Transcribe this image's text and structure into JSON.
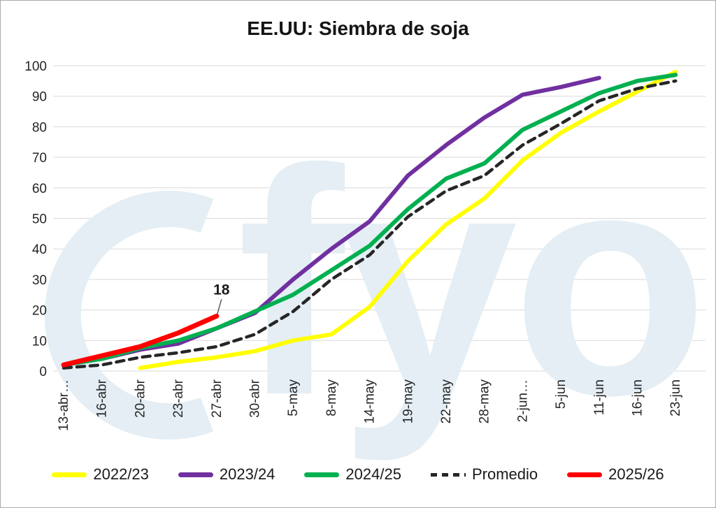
{
  "title": "EE.UU: Siembra de soja",
  "watermark_text": "fyo",
  "chart_data": {
    "type": "line",
    "title": "EE.UU: Siembra de soja",
    "categories": [
      "13-abr…",
      "16-abr",
      "20-abr",
      "23-abr",
      "27-abr",
      "30-abr",
      "5-may",
      "8-may",
      "14-may",
      "19-may",
      "22-may",
      "28-may",
      "2-jun…",
      "5-jun",
      "11-jun",
      "16-jun",
      "23-jun"
    ],
    "series": [
      {
        "name": "2022/23",
        "color": "#FFFF00",
        "dashed": false,
        "values": [
          null,
          null,
          1,
          3,
          4.5,
          6.5,
          10,
          12,
          21,
          36,
          48,
          56.5,
          69,
          78,
          85,
          91.5,
          98
        ]
      },
      {
        "name": "2023/24",
        "color": "#7030A0",
        "dashed": false,
        "values": [
          null,
          4,
          7,
          9,
          14,
          19,
          30,
          40,
          49,
          64,
          74,
          83,
          90.5,
          93,
          96,
          null,
          null
        ]
      },
      {
        "name": "2024/25",
        "color": "#00B050",
        "dashed": false,
        "values": [
          2,
          4,
          7.5,
          10,
          14,
          19.5,
          25,
          33,
          41,
          53,
          63,
          68,
          79,
          85,
          91,
          95,
          97
        ]
      },
      {
        "name": "Promedio",
        "color": "#262626",
        "dashed": true,
        "values": [
          1,
          2,
          4.5,
          6,
          8,
          12,
          19.5,
          30,
          38,
          50.5,
          59,
          64,
          74,
          81,
          88.5,
          92.5,
          95
        ]
      },
      {
        "name": "2025/26",
        "color": "#FF0000",
        "dashed": false,
        "values": [
          2,
          5,
          8,
          12.5,
          18,
          null,
          null,
          null,
          null,
          null,
          null,
          null,
          null,
          null,
          null,
          null,
          null
        ]
      }
    ],
    "ylabel": "",
    "xlabel": "",
    "ylim": [
      0,
      100
    ],
    "yticks": [
      0,
      10,
      20,
      30,
      40,
      50,
      60,
      70,
      80,
      90,
      100
    ],
    "grid": true,
    "legend_position": "bottom",
    "annotations": [
      {
        "text": "18",
        "series": "2025/26",
        "category": "27-abr",
        "value": 18
      }
    ]
  }
}
